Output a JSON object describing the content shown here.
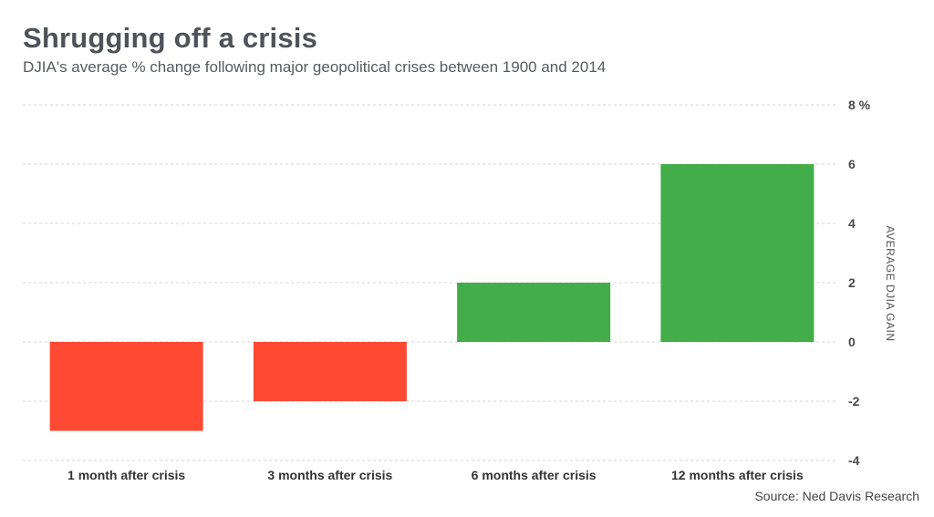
{
  "chart_data": {
    "type": "bar",
    "title": "Shrugging off a crisis",
    "subtitle": "DJIA's average % change following major geopolitical crises between 1900 and 2014",
    "categories": [
      "1 month after crisis",
      "3 months after crisis",
      "6 months after crisis",
      "12 months after crisis"
    ],
    "values": [
      -3.0,
      -2.0,
      2.0,
      6.0
    ],
    "ylim": [
      -4,
      8
    ],
    "yticks": [
      -4,
      -2,
      0,
      2,
      4,
      6,
      8
    ],
    "ytick_labels": [
      "-4",
      "-2",
      "0",
      "2",
      "4",
      "6",
      "8 %"
    ],
    "ylabel": "AVERAGE DJIA GAIN",
    "xlabel": "",
    "grid": true,
    "colors": {
      "negative": "#ff4a33",
      "positive": "#43ad49"
    },
    "source": "Source: Ned Davis Research"
  }
}
